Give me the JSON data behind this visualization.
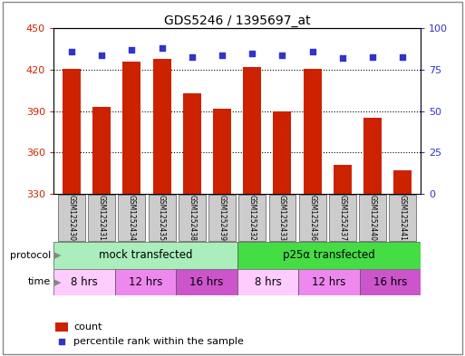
{
  "title": "GDS5246 / 1395697_at",
  "samples": [
    "GSM1252430",
    "GSM1252431",
    "GSM1252434",
    "GSM1252435",
    "GSM1252438",
    "GSM1252439",
    "GSM1252432",
    "GSM1252433",
    "GSM1252436",
    "GSM1252437",
    "GSM1252440",
    "GSM1252441"
  ],
  "bar_values": [
    421,
    393,
    426,
    428,
    403,
    392,
    422,
    390,
    421,
    351,
    385,
    347
  ],
  "percentile_values": [
    86,
    84,
    87,
    88,
    83,
    84,
    85,
    84,
    86,
    82,
    83,
    83
  ],
  "ylim_left": [
    330,
    450
  ],
  "ylim_right": [
    0,
    100
  ],
  "yticks_left": [
    330,
    360,
    390,
    420,
    450
  ],
  "yticks_right": [
    0,
    25,
    50,
    75,
    100
  ],
  "bar_color": "#CC2200",
  "dot_color": "#3333CC",
  "protocol_groups": [
    {
      "label": "mock transfected",
      "start": 0,
      "end": 6,
      "color": "#AAEEBB"
    },
    {
      "label": "p25α transfected",
      "start": 6,
      "end": 12,
      "color": "#44DD44"
    }
  ],
  "time_groups": [
    {
      "label": "8 hrs",
      "start": 0,
      "end": 2,
      "color": "#FFCCFF"
    },
    {
      "label": "12 hrs",
      "start": 2,
      "end": 4,
      "color": "#EE88EE"
    },
    {
      "label": "16 hrs",
      "start": 4,
      "end": 6,
      "color": "#CC55CC"
    },
    {
      "label": "8 hrs",
      "start": 6,
      "end": 8,
      "color": "#FFCCFF"
    },
    {
      "label": "12 hrs",
      "start": 8,
      "end": 10,
      "color": "#EE88EE"
    },
    {
      "label": "16 hrs",
      "start": 10,
      "end": 12,
      "color": "#CC55CC"
    }
  ],
  "legend_count_color": "#CC2200",
  "legend_pct_color": "#3333CC",
  "left_tick_color": "#CC2200",
  "right_tick_color": "#3333CC",
  "background_color": "#FFFFFF",
  "sample_area_color": "#CCCCCC",
  "outer_border_color": "#888888",
  "grid_color": "#000000",
  "arrow_color": "#888888"
}
